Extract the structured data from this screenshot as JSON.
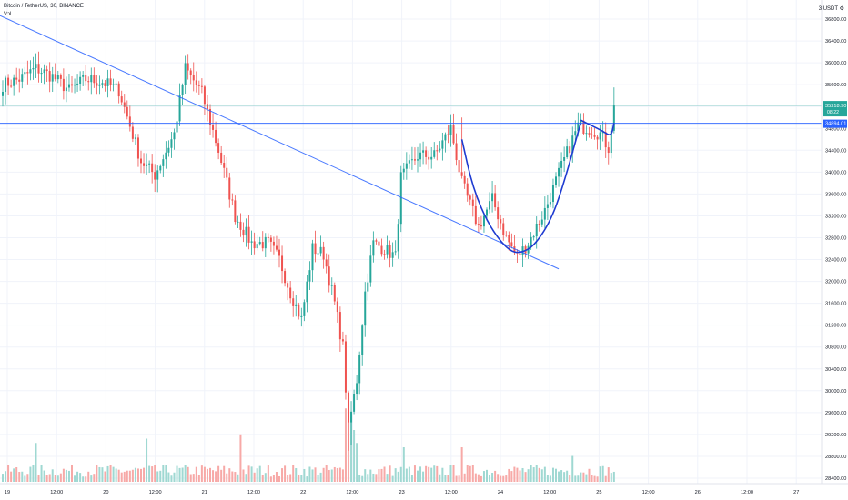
{
  "header": {
    "symbol_line": "Bitcoin / TetherUS, 30, BINANCE",
    "volume_label": "Vol"
  },
  "scale_header": "3 USDT ⚙",
  "colors": {
    "up": "#26a69a",
    "down": "#ef5350",
    "up_volume": "#9fd8d2",
    "down_volume": "#f7a9a7",
    "trendline": "#2962ff",
    "cup_curve": "#1e3bd1",
    "grid": "#f0f3fa",
    "axis_text": "#131722",
    "price_tag_up": "#26a69a",
    "price_tag_line": "#2962ff"
  },
  "chart_data": {
    "type": "candlestick",
    "y_axis": {
      "ticks": [
        "36800.00",
        "36400.00",
        "36000.00",
        "35600.00",
        "35200.00",
        "34800.00",
        "34400.00",
        "34000.00",
        "33600.00",
        "33200.00",
        "32800.00",
        "32400.00",
        "32000.00",
        "31600.00",
        "31200.00",
        "30800.00",
        "30400.00",
        "30000.00",
        "29600.00",
        "29200.00",
        "28800.00",
        "28400.00"
      ],
      "ylim": [
        28300,
        37150
      ]
    },
    "x_axis": {
      "ticks": [
        "19",
        "12:00",
        "20",
        "12:00",
        "21",
        "12:00",
        "22",
        "12:00",
        "23",
        "12:00",
        "24",
        "12:00",
        "25",
        "12:00",
        "26",
        "12:00",
        "27"
      ]
    },
    "price_labels": [
      {
        "value": 35218.9,
        "text": "35218.90",
        "sub": "08:22",
        "kind": "last"
      },
      {
        "value": 34894.01,
        "text": "34894.01",
        "kind": "line"
      }
    ],
    "horizontal_lines": [
      35218.9,
      34894.01
    ],
    "anchors": [
      {
        "i": 0,
        "p": 35600
      },
      {
        "i": 6,
        "p": 35700
      },
      {
        "i": 12,
        "p": 35900
      },
      {
        "i": 18,
        "p": 35750
      },
      {
        "i": 24,
        "p": 35500
      },
      {
        "i": 30,
        "p": 35700
      },
      {
        "i": 36,
        "p": 35650
      },
      {
        "i": 42,
        "p": 35500
      },
      {
        "i": 50,
        "p": 34200
      },
      {
        "i": 55,
        "p": 33950
      },
      {
        "i": 62,
        "p": 34700
      },
      {
        "i": 66,
        "p": 35900
      },
      {
        "i": 72,
        "p": 35450
      },
      {
        "i": 78,
        "p": 34400
      },
      {
        "i": 84,
        "p": 33200
      },
      {
        "i": 90,
        "p": 32700
      },
      {
        "i": 96,
        "p": 32700
      },
      {
        "i": 100,
        "p": 32400
      },
      {
        "i": 104,
        "p": 31800
      },
      {
        "i": 108,
        "p": 31300
      },
      {
        "i": 112,
        "p": 32600
      },
      {
        "i": 116,
        "p": 32500
      },
      {
        "i": 120,
        "p": 31600
      },
      {
        "i": 123,
        "p": 30800
      },
      {
        "i": 125,
        "p": 29300
      },
      {
        "i": 128,
        "p": 30200
      },
      {
        "i": 131,
        "p": 31800
      },
      {
        "i": 134,
        "p": 32700
      },
      {
        "i": 138,
        "p": 32600
      },
      {
        "i": 142,
        "p": 32450
      },
      {
        "i": 144,
        "p": 33900
      },
      {
        "i": 150,
        "p": 34300
      },
      {
        "i": 156,
        "p": 34300
      },
      {
        "i": 162,
        "p": 34800
      },
      {
        "i": 166,
        "p": 33800
      },
      {
        "i": 172,
        "p": 33000
      },
      {
        "i": 177,
        "p": 33500
      },
      {
        "i": 182,
        "p": 32800
      },
      {
        "i": 186,
        "p": 32450
      },
      {
        "i": 190,
        "p": 32700
      },
      {
        "i": 196,
        "p": 33300
      },
      {
        "i": 202,
        "p": 34100
      },
      {
        "i": 206,
        "p": 34600
      },
      {
        "i": 208,
        "p": 34850
      },
      {
        "i": 212,
        "p": 34800
      },
      {
        "i": 216,
        "p": 34700
      },
      {
        "i": 219,
        "p": 34450
      },
      {
        "i": 221,
        "p": 35218
      }
    ],
    "spikes": [
      {
        "i": 125,
        "low": 28900
      },
      {
        "i": 126,
        "low": 29000
      },
      {
        "i": 166,
        "high": 35000
      },
      {
        "i": 221,
        "high": 35550
      }
    ],
    "volume": {
      "ymax": 100,
      "spikes": [
        {
          "i": 12,
          "v": 45
        },
        {
          "i": 52,
          "v": 50
        },
        {
          "i": 86,
          "v": 55
        },
        {
          "i": 124,
          "v": 85
        },
        {
          "i": 125,
          "v": 100
        },
        {
          "i": 126,
          "v": 75
        },
        {
          "i": 127,
          "v": 60
        },
        {
          "i": 128,
          "v": 45
        },
        {
          "i": 145,
          "v": 40
        },
        {
          "i": 166,
          "v": 40
        },
        {
          "i": 206,
          "v": 30
        }
      ]
    },
    "drawings": {
      "trendline": {
        "from": {
          "i": -20,
          "p": 37300
        },
        "to": {
          "i": 201,
          "p": 32230
        }
      },
      "cup": [
        {
          "i": 166,
          "p": 34600
        },
        {
          "i": 170,
          "p": 33700
        },
        {
          "i": 176,
          "p": 33000
        },
        {
          "i": 183,
          "p": 32550
        },
        {
          "i": 188,
          "p": 32520
        },
        {
          "i": 193,
          "p": 32700
        },
        {
          "i": 199,
          "p": 33200
        },
        {
          "i": 204,
          "p": 34000
        },
        {
          "i": 207,
          "p": 34550
        },
        {
          "i": 209,
          "p": 34900
        }
      ],
      "handle": [
        {
          "i": 209,
          "p": 34950
        },
        {
          "i": 213,
          "p": 34850
        },
        {
          "i": 217,
          "p": 34750
        },
        {
          "i": 220,
          "p": 34650
        },
        {
          "i": 221,
          "p": 34900
        }
      ]
    }
  }
}
